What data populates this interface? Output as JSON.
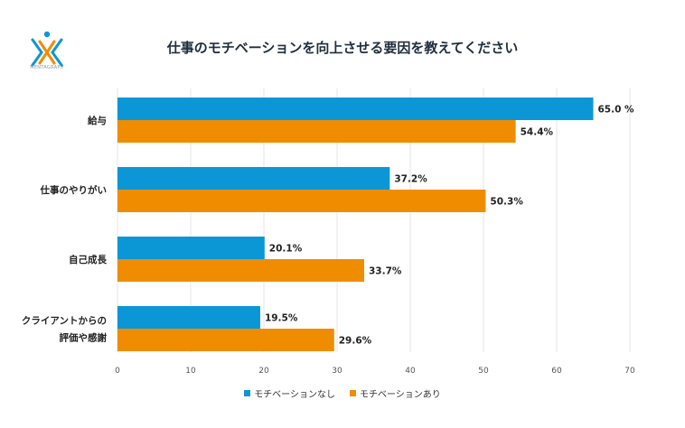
{
  "logo": {
    "text": "MENTAGRAPH"
  },
  "chart_data": {
    "type": "bar",
    "orientation": "horizontal",
    "title": "仕事のモチベーションを向上させる要因を教えてください",
    "categories": [
      [
        "給与"
      ],
      [
        "仕事のやりがい"
      ],
      [
        "自己成長"
      ],
      [
        "クライアントからの",
        "評価や感謝"
      ]
    ],
    "series": [
      {
        "name": "モチベーションなし",
        "color": "#0b96d6",
        "values": [
          65.0,
          37.2,
          20.1,
          19.5
        ],
        "labels": [
          "65.0 %",
          "37.2%",
          "20.1%",
          "19.5%"
        ]
      },
      {
        "name": "モチベーションあり",
        "color": "#f08c00",
        "values": [
          54.4,
          50.3,
          33.7,
          29.6
        ],
        "labels": [
          "54.4%",
          "50.3%",
          "33.7%",
          "29.6%"
        ]
      }
    ],
    "xlim": [
      0,
      70
    ],
    "xticks": [
      0,
      10,
      20,
      30,
      40,
      50,
      60,
      70
    ],
    "grid": true,
    "legend_position": "bottom"
  }
}
